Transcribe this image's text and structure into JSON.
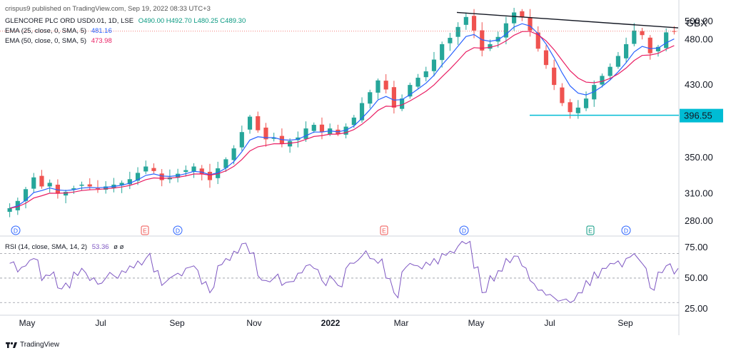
{
  "header": {
    "attribution": "crispus9 published on TradingView.com, Sep 19, 2022 08:33 UTC+3",
    "symbol": "GLENCORE PLC ORD USD0.01, 1D, LSE",
    "ohlc": "O490.00  H492.70  L480.25  C489.30",
    "ema25_label": "EMA (25, close, 0, SMA, 5)",
    "ema25_value": "481.16",
    "ema50_label": "EMA (50, close, 0, SMA, 5)",
    "ema50_value": "473.98",
    "currency": "GBX"
  },
  "rsi_header": {
    "label": "RSI (14, close, SMA, 14, 2)",
    "value": "53.36",
    "extra": "ø ø"
  },
  "footer": {
    "brand": "TradingView"
  },
  "colors": {
    "candle_up": "#26a69a",
    "candle_down": "#ef5350",
    "ema25": "#2962ff",
    "ema50": "#e91e63",
    "rsi": "#7e57c2",
    "trendline": "#131722",
    "support": "#00bcd4",
    "price_line": "#ef5350",
    "event_blue": "#2962ff",
    "event_red": "#ef5350",
    "event_green": "#089981"
  },
  "chart_data": {
    "type": "candlestick",
    "title": "GLENCORE PLC ORD USD0.01, 1D, LSE",
    "ylabel": "GBX",
    "ylim": [
      268,
      508
    ],
    "y_ticks": [
      "280.00",
      "310.00",
      "350.00",
      "396.55",
      "430.00",
      "480.00",
      "500.00"
    ],
    "x_tick_labels": [
      "May",
      "Jul",
      "Sep",
      "Nov",
      "2022",
      "Mar",
      "May",
      "Jul",
      "Sep"
    ],
    "approx_closes_weekly": [
      294,
      302,
      315,
      328,
      318,
      322,
      310,
      312,
      316,
      320,
      318,
      316,
      318,
      320,
      322,
      326,
      333,
      340,
      335,
      325,
      328,
      332,
      336,
      340,
      332,
      325,
      338,
      348,
      360,
      378,
      395,
      380,
      370,
      372,
      365,
      368,
      372,
      382,
      386,
      378,
      382,
      376,
      384,
      394,
      410,
      422,
      435,
      425,
      405,
      415,
      430,
      438,
      445,
      458,
      475,
      482,
      494,
      505,
      490,
      468,
      475,
      483,
      498,
      510,
      505,
      490,
      470,
      452,
      430,
      410,
      400,
      405,
      415,
      430,
      440,
      450,
      462,
      475,
      490,
      485,
      465,
      472,
      488,
      489.3
    ],
    "series": [
      {
        "name": "EMA (25, close, 0, SMA, 5)",
        "last": 481.16
      },
      {
        "name": "EMA (50, close, 0, SMA, 5)",
        "last": 473.98
      }
    ],
    "current_price": 489.3,
    "annotations": {
      "support_level": 396.55,
      "descending_trendline": [
        {
          "x": "2022-04 (mid)",
          "y": 510
        },
        {
          "x": "2022-09 (end)",
          "y": 493
        }
      ]
    },
    "events": [
      {
        "label": "D",
        "x": "2021-04",
        "kind": "dividend"
      },
      {
        "label": "E",
        "x": "2021-08",
        "kind": "earnings"
      },
      {
        "label": "D",
        "x": "2021-09",
        "kind": "dividend"
      },
      {
        "label": "E",
        "x": "2022-02",
        "kind": "earnings"
      },
      {
        "label": "D",
        "x": "2022-05",
        "kind": "dividend"
      },
      {
        "label": "E",
        "x": "2022-08",
        "kind": "earnings"
      },
      {
        "label": "D",
        "x": "2022-09",
        "kind": "dividend"
      }
    ],
    "rsi": {
      "name": "RSI (14, close, SMA, 14, 2)",
      "last": 53.36,
      "ylim": [
        22,
        82
      ],
      "y_ticks": [
        "75.00",
        "50.00",
        "25.00"
      ],
      "bands": [
        70,
        50,
        30
      ],
      "approx_values_weekly": [
        62,
        55,
        60,
        66,
        48,
        52,
        42,
        46,
        55,
        58,
        48,
        45,
        50,
        52,
        56,
        60,
        64,
        66,
        55,
        44,
        50,
        54,
        58,
        60,
        45,
        38,
        60,
        66,
        72,
        78,
        70,
        52,
        48,
        50,
        44,
        47,
        54,
        60,
        58,
        48,
        52,
        44,
        58,
        62,
        68,
        66,
        62,
        50,
        38,
        55,
        62,
        60,
        63,
        66,
        70,
        72,
        76,
        78,
        58,
        38,
        52,
        56,
        66,
        68,
        60,
        48,
        40,
        36,
        34,
        32,
        30,
        38,
        48,
        55,
        58,
        62,
        64,
        66,
        70,
        62,
        42,
        55,
        60,
        53.36
      ]
    }
  }
}
